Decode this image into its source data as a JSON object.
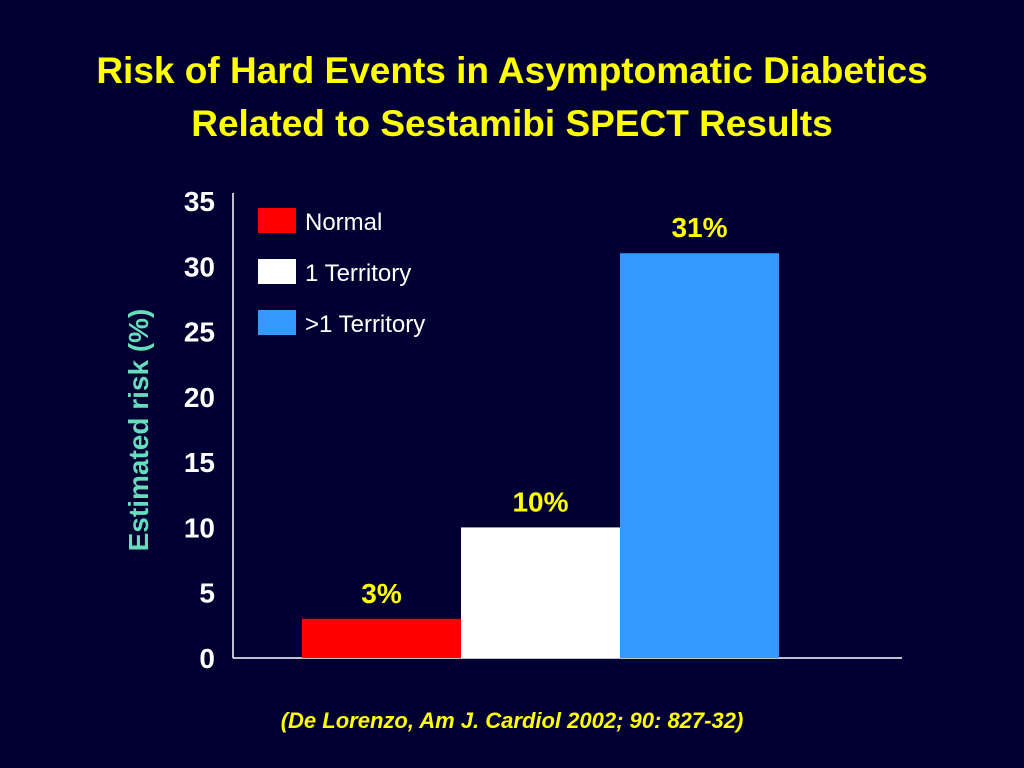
{
  "slide": {
    "title_line1": "Risk of Hard Events in Asymptomatic Diabetics",
    "title_line2": "Related to Sestamibi SPECT Results",
    "citation": "(De Lorenzo, Am J. Cardiol 2002; 90: 827-32)"
  },
  "colors": {
    "background": "#000033",
    "title": "#ffff00",
    "ylabel": "#66ddbb",
    "axis_text": "#ffffff"
  },
  "chart_data": {
    "type": "bar",
    "title": "Risk of Hard Events in Asymptomatic Diabetics Related to Sestamibi SPECT Results",
    "xlabel": "",
    "ylabel": "Estimated risk (%)",
    "ylim": [
      0,
      35
    ],
    "yticks": [
      0,
      5,
      10,
      15,
      20,
      25,
      30,
      35
    ],
    "grid": false,
    "legend_position": "top-left",
    "categories": [
      "Normal",
      "1 Territory",
      ">1 Territory"
    ],
    "values": [
      3,
      10,
      31
    ],
    "data_labels": [
      "3%",
      "10%",
      "31%"
    ],
    "colors": [
      "#ff0000",
      "#ffffff",
      "#3399ff"
    ]
  }
}
